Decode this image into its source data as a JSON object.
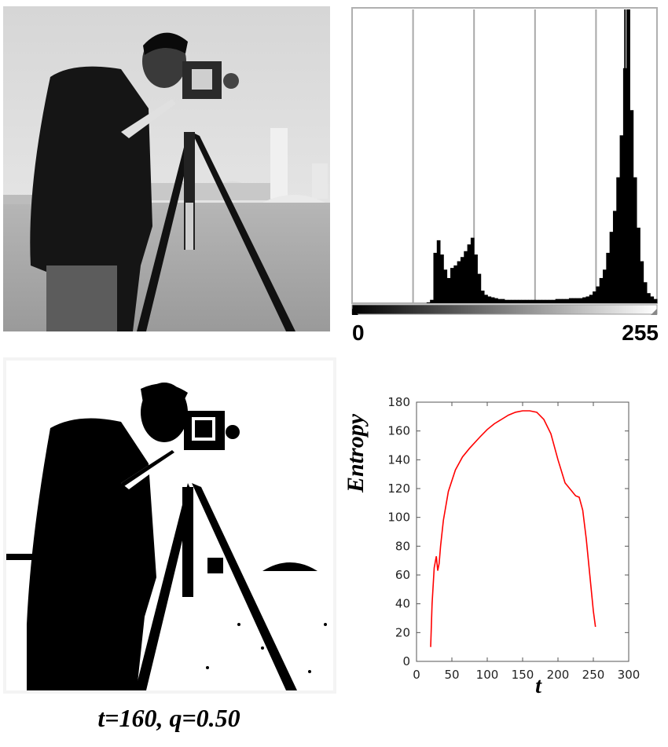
{
  "histogram": {
    "tick_min": "0",
    "tick_max": "255",
    "chart_data": {
      "type": "bar",
      "x_range": [
        0,
        255
      ],
      "gradient": "black-to-white",
      "grid": "vertical lines",
      "values": [
        0,
        0,
        0,
        0,
        0,
        0,
        0,
        0,
        0,
        0,
        0,
        0,
        0,
        0,
        0,
        0,
        0,
        0,
        0,
        0,
        0,
        0,
        1,
        4,
        60,
        75,
        58,
        40,
        30,
        42,
        45,
        50,
        55,
        62,
        70,
        78,
        58,
        35,
        15,
        10,
        8,
        7,
        6,
        5,
        5,
        4,
        4,
        4,
        4,
        4,
        4,
        4,
        4,
        4,
        4,
        4,
        4,
        4,
        4,
        4,
        5,
        5,
        5,
        5,
        6,
        6,
        6,
        6,
        7,
        8,
        10,
        14,
        20,
        30,
        40,
        60,
        85,
        110,
        150,
        200,
        280,
        350,
        230,
        150,
        90,
        50,
        25,
        12,
        8,
        5
      ]
    }
  },
  "entropy_chart": {
    "chart_data": {
      "type": "line",
      "xlabel": "t",
      "ylabel": "Entropy",
      "xlim": [
        0,
        300
      ],
      "ylim": [
        0,
        180
      ],
      "xticks": [
        0,
        50,
        100,
        150,
        200,
        250,
        300
      ],
      "yticks": [
        0,
        20,
        40,
        60,
        80,
        100,
        120,
        140,
        160,
        180
      ],
      "line_color": "#ff0000",
      "x": [
        20,
        22,
        25,
        28,
        30,
        32,
        34,
        38,
        45,
        55,
        65,
        75,
        90,
        100,
        110,
        120,
        130,
        140,
        150,
        160,
        170,
        180,
        190,
        200,
        205,
        210,
        215,
        220,
        225,
        230,
        235,
        240,
        245,
        250,
        253
      ],
      "y": [
        10,
        40,
        65,
        73,
        63,
        68,
        80,
        98,
        118,
        133,
        142,
        148,
        156,
        161,
        165,
        168,
        171,
        173,
        174,
        174,
        173,
        168,
        158,
        140,
        132,
        124,
        121,
        118,
        115,
        114,
        105,
        85,
        60,
        35,
        24
      ]
    }
  },
  "caption": "t=160, q=0.50",
  "colors": {
    "accent": "#ff0000"
  }
}
